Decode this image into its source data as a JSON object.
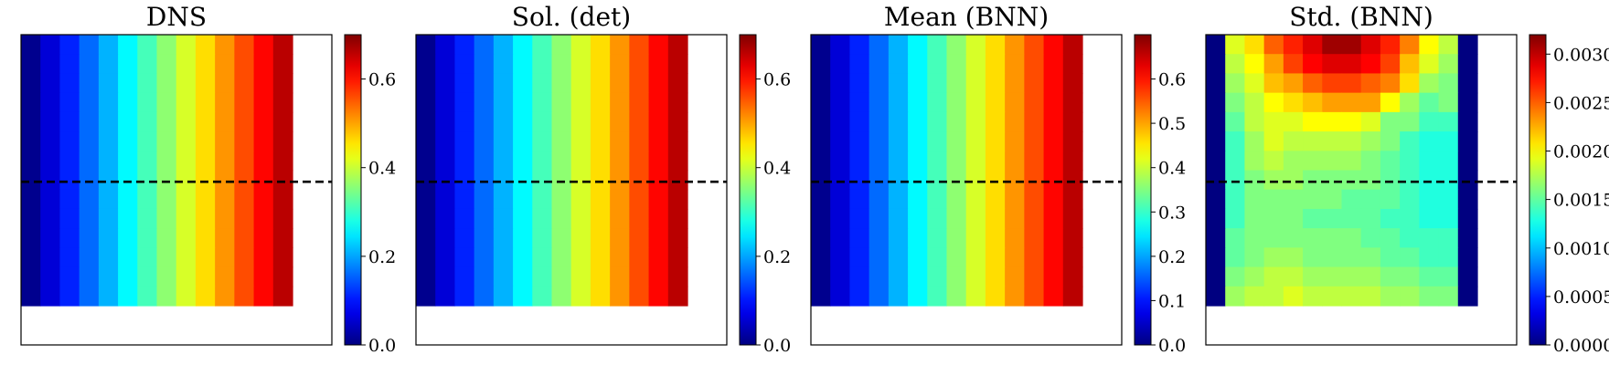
{
  "figure": {
    "background": "#ffffff",
    "dashed_line_color": "#000000",
    "colormap": "jet"
  },
  "chart_data": [
    {
      "type": "heatmap",
      "title": "DNS",
      "grid": {
        "rows": 14,
        "cols": 14,
        "filled_rows": 14,
        "filled_cols": 14
      },
      "values": [
        0.01,
        0.06,
        0.11,
        0.16,
        0.21,
        0.26,
        0.31,
        0.36,
        0.41,
        0.46,
        0.51,
        0.56,
        0.61,
        0.66
      ],
      "pattern": "column",
      "colorbar": {
        "min": 0.0,
        "max": 0.7,
        "ticks": [
          "0.0",
          "0.2",
          "0.4",
          "0.6"
        ],
        "tick_values": [
          0.0,
          0.2,
          0.4,
          0.6
        ]
      },
      "dashed_line_row": 7.6
    },
    {
      "type": "heatmap",
      "title": "Sol. (det)",
      "grid": {
        "rows": 14,
        "cols": 14,
        "filled_rows": 14,
        "filled_cols": 14
      },
      "values": [
        0.01,
        0.06,
        0.11,
        0.16,
        0.21,
        0.26,
        0.31,
        0.36,
        0.41,
        0.46,
        0.51,
        0.56,
        0.61,
        0.66
      ],
      "pattern": "column",
      "colorbar": {
        "min": 0.0,
        "max": 0.7,
        "ticks": [
          "0.0",
          "0.2",
          "0.4",
          "0.6"
        ],
        "tick_values": [
          0.0,
          0.2,
          0.4,
          0.6
        ]
      },
      "dashed_line_row": 7.6
    },
    {
      "type": "heatmap",
      "title": "Mean (BNN)",
      "grid": {
        "rows": 14,
        "cols": 14,
        "filled_rows": 14,
        "filled_cols": 14
      },
      "values": [
        0.01,
        0.06,
        0.11,
        0.16,
        0.21,
        0.26,
        0.31,
        0.36,
        0.41,
        0.46,
        0.51,
        0.56,
        0.61,
        0.66
      ],
      "pattern": "column",
      "colorbar": {
        "min": 0.0,
        "max": 0.7,
        "ticks": [
          "0.0",
          "0.1",
          "0.2",
          "0.3",
          "0.4",
          "0.5",
          "0.6"
        ],
        "tick_values": [
          0.0,
          0.1,
          0.2,
          0.3,
          0.4,
          0.5,
          0.6
        ]
      },
      "dashed_line_row": 7.6
    },
    {
      "type": "heatmap",
      "title": "Std. (BNN)",
      "grid": {
        "rows": 14,
        "cols": 14,
        "filled_rows": 14,
        "filled_cols": 14
      },
      "pattern": "matrix",
      "matrix": [
        [
          0.0,
          0.0019,
          0.0021,
          0.0025,
          0.0027,
          0.0029,
          0.0031,
          0.0031,
          0.0029,
          0.0027,
          0.0024,
          0.002,
          0.0018,
          0.0
        ],
        [
          0.0,
          0.0018,
          0.002,
          0.0023,
          0.0026,
          0.0028,
          0.0029,
          0.0029,
          0.0028,
          0.0026,
          0.0022,
          0.0019,
          0.0017,
          0.0
        ],
        [
          0.0,
          0.0017,
          0.0019,
          0.0022,
          0.0023,
          0.0025,
          0.0026,
          0.0026,
          0.0025,
          0.0024,
          0.0021,
          0.0017,
          0.0016,
          0.0
        ],
        [
          0.0,
          0.0016,
          0.0018,
          0.002,
          0.0021,
          0.0022,
          0.0023,
          0.0023,
          0.0023,
          0.002,
          0.0017,
          0.0015,
          0.0016,
          0.0
        ],
        [
          0.0,
          0.0015,
          0.0018,
          0.0019,
          0.0019,
          0.002,
          0.002,
          0.002,
          0.0019,
          0.0016,
          0.0016,
          0.0014,
          0.0014,
          0.0
        ],
        [
          0.0,
          0.0014,
          0.0017,
          0.0019,
          0.0018,
          0.0018,
          0.0018,
          0.0018,
          0.0017,
          0.0016,
          0.0014,
          0.0013,
          0.0013,
          0.0
        ],
        [
          0.0,
          0.0014,
          0.0017,
          0.0018,
          0.0017,
          0.0017,
          0.0017,
          0.0017,
          0.0016,
          0.0015,
          0.0014,
          0.0013,
          0.0013,
          0.0
        ],
        [
          0.0,
          0.0014,
          0.0016,
          0.0017,
          0.0017,
          0.0016,
          0.0016,
          0.0016,
          0.0016,
          0.0015,
          0.0014,
          0.0013,
          0.0013,
          0.0
        ],
        [
          0.0,
          0.0014,
          0.0016,
          0.0016,
          0.0016,
          0.0016,
          0.0016,
          0.0015,
          0.0015,
          0.0015,
          0.0014,
          0.0013,
          0.0013,
          0.0
        ],
        [
          0.0,
          0.0014,
          0.0016,
          0.0016,
          0.0016,
          0.0015,
          0.0015,
          0.0015,
          0.0015,
          0.0014,
          0.0014,
          0.0013,
          0.0013,
          0.0
        ],
        [
          0.0,
          0.0015,
          0.0016,
          0.0016,
          0.0016,
          0.0016,
          0.0016,
          0.0016,
          0.0015,
          0.0015,
          0.0014,
          0.0014,
          0.0014,
          0.0
        ],
        [
          0.0,
          0.0015,
          0.0016,
          0.0017,
          0.0017,
          0.0016,
          0.0016,
          0.0016,
          0.0016,
          0.0015,
          0.0015,
          0.0014,
          0.0014,
          0.0
        ],
        [
          0.0,
          0.0016,
          0.0017,
          0.0018,
          0.0018,
          0.0017,
          0.0017,
          0.0017,
          0.0017,
          0.0016,
          0.0016,
          0.0015,
          0.0015,
          0.0
        ],
        [
          0.0,
          0.0017,
          0.0018,
          0.0018,
          0.0019,
          0.0018,
          0.0018,
          0.0018,
          0.0018,
          0.0017,
          0.0017,
          0.0016,
          0.0016,
          0.0
        ]
      ],
      "colorbar": {
        "min": 0.0,
        "max": 0.0032,
        "ticks": [
          "0.0000",
          "0.0005",
          "0.0010",
          "0.0015",
          "0.0020",
          "0.0025",
          "0.0030"
        ],
        "tick_values": [
          0.0,
          0.0005,
          0.001,
          0.0015,
          0.002,
          0.0025,
          0.003
        ]
      },
      "dashed_line_row": 7.6
    }
  ]
}
